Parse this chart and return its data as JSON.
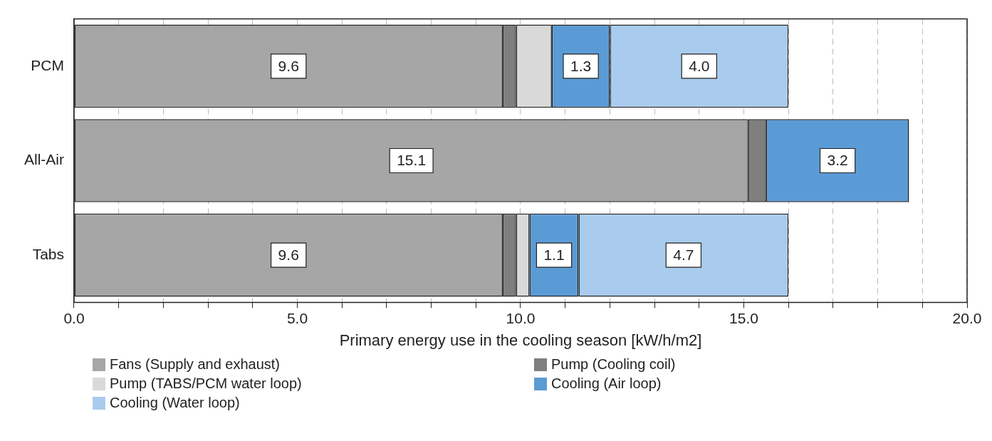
{
  "chart_data": {
    "type": "bar",
    "orientation": "horizontal",
    "stacked": true,
    "xlabel": "Primary energy use in the cooling season [kW/h/m2]",
    "categories": [
      "PCM",
      "All-Air",
      "Tabs"
    ],
    "series": [
      {
        "name": "Fans (Supply and exhaust)",
        "color": "#a6a6a6",
        "values": [
          9.6,
          15.1,
          9.6
        ],
        "value_labels": [
          "9.6",
          "15.1",
          "9.6"
        ]
      },
      {
        "name": "Pump (Cooling coil)",
        "color": "#7f7f7f",
        "values": [
          0.3,
          0.4,
          0.3
        ],
        "value_labels": [
          null,
          null,
          null
        ]
      },
      {
        "name": "Pump (TABS/PCM water loop)",
        "color": "#d9d9d9",
        "values": [
          0.8,
          null,
          0.3
        ],
        "value_labels": [
          null,
          null,
          null
        ]
      },
      {
        "name": "Cooling (Air loop)",
        "color": "#5b9bd5",
        "values": [
          1.3,
          3.2,
          1.1
        ],
        "value_labels": [
          "1.3",
          "3.2",
          "1.1"
        ]
      },
      {
        "name": "Cooling (Water loop)",
        "color": "#a9cbed",
        "values": [
          4.0,
          null,
          4.7
        ],
        "value_labels": [
          "4.0",
          null,
          "4.7"
        ]
      }
    ],
    "xlim": [
      0,
      20
    ],
    "xticks": [
      {
        "value": 0,
        "label": "0.0"
      },
      {
        "value": 1,
        "label": null
      },
      {
        "value": 2,
        "label": null
      },
      {
        "value": 3,
        "label": null
      },
      {
        "value": 4,
        "label": null
      },
      {
        "value": 5,
        "label": "5.0"
      },
      {
        "value": 6,
        "label": null
      },
      {
        "value": 7,
        "label": null
      },
      {
        "value": 8,
        "label": null
      },
      {
        "value": 9,
        "label": null
      },
      {
        "value": 10,
        "label": "10.0"
      },
      {
        "value": 11,
        "label": null
      },
      {
        "value": 12,
        "label": null
      },
      {
        "value": 13,
        "label": null
      },
      {
        "value": 14,
        "label": null
      },
      {
        "value": 15,
        "label": "15.0"
      },
      {
        "value": 16,
        "label": null
      },
      {
        "value": 17,
        "label": null
      },
      {
        "value": 18,
        "label": null
      },
      {
        "value": 19,
        "label": null
      },
      {
        "value": 20,
        "label": "20.0"
      }
    ],
    "grid": "x",
    "legend": "bottom"
  }
}
